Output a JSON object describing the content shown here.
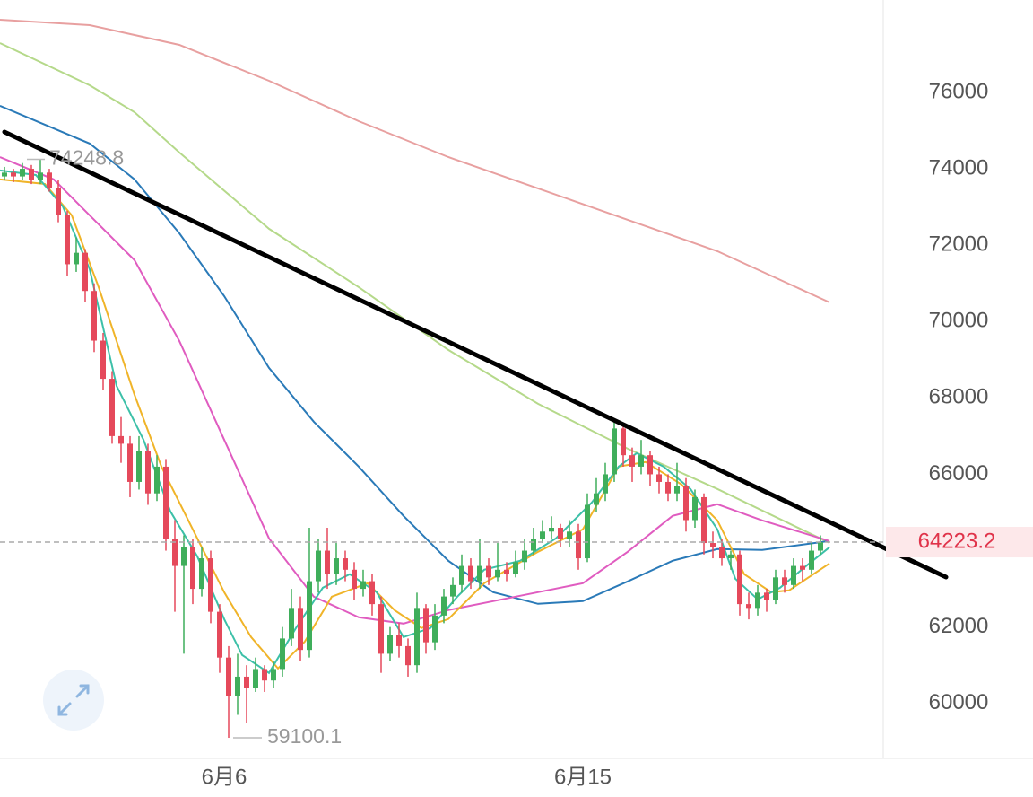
{
  "chart_data": {
    "type": "candlestick",
    "xlim": [
      -0.5,
      98
    ],
    "ylim": [
      58560,
      78420
    ],
    "xticks": [
      {
        "value": 24.5,
        "label": "6月6"
      },
      {
        "value": 64.5,
        "label": "6月15"
      }
    ],
    "yticks": [
      60000,
      62000,
      64000,
      66000,
      68000,
      70000,
      72000,
      74000,
      76000
    ],
    "up_color": "#3fae5b",
    "down_color": "#e5495b",
    "candles": [
      [
        73800,
        74050,
        73700,
        73900
      ],
      [
        73900,
        74000,
        73650,
        73800
      ],
      [
        73800,
        74150,
        73700,
        74000
      ],
      [
        74000,
        74100,
        73600,
        73700
      ],
      [
        73700,
        74248.8,
        73600,
        73900
      ],
      [
        73900,
        74000,
        73400,
        73500
      ],
      [
        73500,
        73700,
        72600,
        72800
      ],
      [
        72800,
        72900,
        71200,
        71500
      ],
      [
        71500,
        72200,
        71300,
        71800
      ],
      [
        71800,
        71900,
        70500,
        70800
      ],
      [
        70800,
        71000,
        69200,
        69500
      ],
      [
        69500,
        69700,
        68200,
        68500
      ],
      [
        68500,
        68700,
        66800,
        67000
      ],
      [
        67000,
        67500,
        66300,
        66800
      ],
      [
        66800,
        67000,
        65400,
        65800
      ],
      [
        65800,
        67000,
        65600,
        66600
      ],
      [
        66600,
        66800,
        65200,
        65500
      ],
      [
        65500,
        66500,
        65300,
        66200
      ],
      [
        66200,
        66400,
        64000,
        64300
      ],
      [
        64300,
        64800,
        62400,
        63600
      ],
      [
        63600,
        64400,
        61300,
        64100
      ],
      [
        64100,
        64300,
        62600,
        63000
      ],
      [
        63000,
        64100,
        62800,
        63800
      ],
      [
        63800,
        64000,
        62100,
        62400
      ],
      [
        62400,
        62600,
        60800,
        61200
      ],
      [
        61200,
        61500,
        59100.1,
        60200
      ],
      [
        60200,
        61300,
        59700,
        60700
      ],
      [
        60700,
        61000,
        59500,
        60400
      ],
      [
        60400,
        61200,
        60300,
        60900
      ],
      [
        60900,
        61000,
        60300,
        60600
      ],
      [
        60600,
        61100,
        60400,
        60900
      ],
      [
        60900,
        62000,
        60700,
        61700
      ],
      [
        61700,
        63000,
        61500,
        62500
      ],
      [
        62500,
        62800,
        61100,
        61400
      ],
      [
        61400,
        64600,
        61200,
        63200
      ],
      [
        63200,
        64300,
        62900,
        64000
      ],
      [
        64000,
        64600,
        63000,
        63400
      ],
      [
        63400,
        64200,
        63100,
        63800
      ],
      [
        63800,
        64000,
        63200,
        63500
      ],
      [
        63500,
        63700,
        62700,
        63000
      ],
      [
        63000,
        63500,
        62800,
        63200
      ],
      [
        63200,
        63400,
        62300,
        62600
      ],
      [
        62600,
        62800,
        60800,
        61300
      ],
      [
        61300,
        62000,
        61100,
        61800
      ],
      [
        61800,
        62100,
        61200,
        61500
      ],
      [
        61500,
        61700,
        60700,
        61000
      ],
      [
        61000,
        62900,
        60800,
        62500
      ],
      [
        62500,
        62600,
        61300,
        61600
      ],
      [
        61600,
        62600,
        61400,
        62300
      ],
      [
        62300,
        63000,
        62100,
        62800
      ],
      [
        62800,
        63300,
        62600,
        63100
      ],
      [
        63100,
        63900,
        62900,
        63600
      ],
      [
        63600,
        63800,
        63000,
        63200
      ],
      [
        63200,
        64300,
        63000,
        63600
      ],
      [
        63600,
        63800,
        63100,
        63300
      ],
      [
        63300,
        64200,
        63200,
        63500
      ],
      [
        63500,
        63700,
        63200,
        63400
      ],
      [
        63400,
        64000,
        63300,
        63700
      ],
      [
        63700,
        64300,
        63500,
        64000
      ],
      [
        64000,
        64600,
        63900,
        64300
      ],
      [
        64300,
        64800,
        64200,
        64500
      ],
      [
        64500,
        64900,
        64300,
        64600
      ],
      [
        64600,
        64700,
        64100,
        64300
      ],
      [
        64300,
        64800,
        64100,
        64500
      ],
      [
        64500,
        64700,
        63500,
        63800
      ],
      [
        63800,
        65500,
        63700,
        65200
      ],
      [
        65200,
        65900,
        65000,
        65500
      ],
      [
        65500,
        66300,
        65300,
        66000
      ],
      [
        66000,
        67400,
        65800,
        67200
      ],
      [
        67200,
        67300,
        66200,
        66500
      ],
      [
        66500,
        66700,
        65800,
        66200
      ],
      [
        66200,
        66900,
        66000,
        66500
      ],
      [
        66500,
        66600,
        65700,
        66000
      ],
      [
        66000,
        66200,
        65500,
        65800
      ],
      [
        65800,
        66000,
        65300,
        65500
      ],
      [
        65500,
        66300,
        65300,
        65700
      ],
      [
        65700,
        65900,
        64500,
        64800
      ],
      [
        64800,
        65600,
        64600,
        65400
      ],
      [
        65400,
        65500,
        63900,
        64200
      ],
      [
        64200,
        64500,
        63800,
        64100
      ],
      [
        64100,
        64300,
        63600,
        63800
      ],
      [
        63800,
        64000,
        63500,
        63900
      ],
      [
        63900,
        64000,
        62300,
        62600
      ],
      [
        62600,
        62900,
        62200,
        62500
      ],
      [
        62500,
        63100,
        62300,
        62900
      ],
      [
        62900,
        63000,
        62400,
        62700
      ],
      [
        62700,
        63500,
        62600,
        63300
      ],
      [
        63300,
        63500,
        62900,
        63100
      ],
      [
        63100,
        63800,
        63000,
        63600
      ],
      [
        63600,
        63800,
        63200,
        63500
      ],
      [
        63500,
        64200,
        63400,
        64000
      ],
      [
        64000,
        64400,
        63900,
        64223.2
      ]
    ],
    "series": [
      {
        "color": "#e8a0a0",
        "x": [
          -0.5,
          9.5,
          19.5,
          29.5,
          39.5,
          49.5,
          59.5,
          69.5,
          79.5,
          92
        ],
        "values": [
          77903,
          77762,
          77245,
          76305,
          75248,
          74308,
          73486,
          72664,
          71841,
          70502
        ]
      },
      {
        "color": "#b5d98a",
        "x": [
          -0.5,
          9.5,
          14.5,
          19.5,
          29.5,
          39.5,
          49.5,
          59.5,
          69.5,
          79.5,
          92
        ],
        "values": [
          77292,
          76188,
          75483,
          74426,
          72429,
          70901,
          69257,
          67847,
          66672,
          65615,
          64205
        ]
      },
      {
        "color": "#2a7ab8",
        "x": [
          -0.5,
          9.5,
          14.5,
          19.5,
          24.5,
          29.5,
          34.5,
          39.5,
          44.5,
          49.5,
          54.5,
          59.5,
          64.5,
          69.5,
          74.5,
          79.5,
          84.5,
          92
        ],
        "values": [
          75648,
          74661,
          73721,
          72311,
          70666,
          68787,
          67377,
          66202,
          64910,
          63735,
          62913,
          62607,
          62678,
          63195,
          63735,
          64041,
          64017,
          64252
        ]
      },
      {
        "color": "#e05cc0",
        "x": [
          -0.5,
          5.5,
          9.5,
          14.5,
          19.5,
          24.5,
          29.5,
          34.5,
          39.5,
          44.5,
          49.5,
          54.5,
          59.5,
          64.5,
          69.5,
          74.5,
          79.5,
          84.5,
          92
        ],
        "values": [
          74308,
          73721,
          72781,
          71606,
          69492,
          66907,
          64322,
          62795,
          62255,
          62090,
          62443,
          62678,
          62913,
          63148,
          63970,
          64910,
          65215,
          64792,
          64252
        ]
      },
      {
        "color": "#f0b429",
        "x": [
          -0.5,
          4.5,
          7.5,
          10.5,
          14.5,
          17.5,
          20.5,
          24.5,
          27.5,
          30.5,
          33.5,
          36.5,
          40.5,
          43.5,
          46.5,
          49.5,
          53.5,
          59.5,
          64.5,
          68.5,
          71.5,
          75.5,
          79.5,
          82.5,
          85.5,
          87.5,
          92
        ],
        "values": [
          73721,
          73603,
          72781,
          70901,
          68082,
          66202,
          64792,
          62913,
          61738,
          60915,
          61620,
          62795,
          63148,
          62443,
          61973,
          62208,
          63148,
          63970,
          64557,
          66202,
          66320,
          65732,
          64792,
          63383,
          62913,
          62960,
          63665
        ]
      },
      {
        "color": "#3cc0a8",
        "x": [
          -0.5,
          3.5,
          6.5,
          9.5,
          12.5,
          15.5,
          18.5,
          21.5,
          24.5,
          26.5,
          29.5,
          32.5,
          35.5,
          38.5,
          41.5,
          44.5,
          47.5,
          50.5,
          53.5,
          57.5,
          61.5,
          65.5,
          68.5,
          70.5,
          73.5,
          76.5,
          79.5,
          81.5,
          84,
          86.5,
          89.5,
          92
        ],
        "values": [
          73956,
          73838,
          73016,
          71371,
          68317,
          66907,
          65027,
          63853,
          62208,
          61268,
          60798,
          61973,
          63030,
          63383,
          62913,
          61738,
          61973,
          62795,
          63500,
          63735,
          64322,
          65262,
          66202,
          66554,
          66202,
          65615,
          64557,
          63265,
          62725,
          63030,
          63617,
          64087
        ]
      }
    ]
  }
}
